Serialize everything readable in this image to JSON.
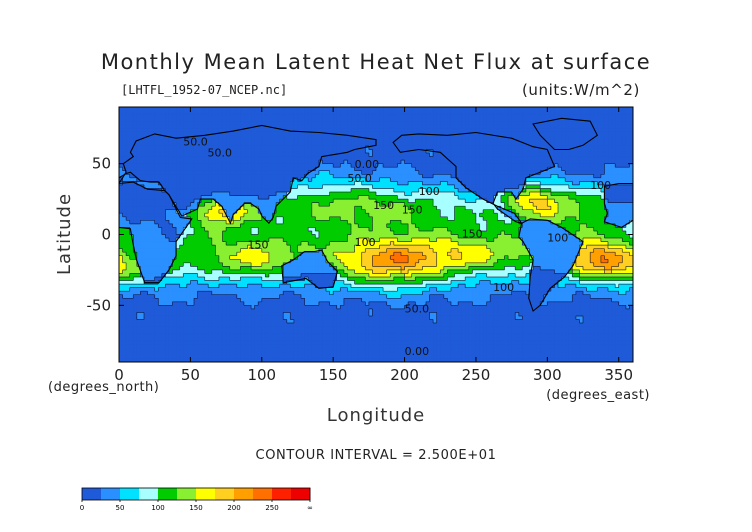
{
  "chart_data": {
    "type": "heatmap",
    "title": "Monthly Mean Latent Heat Net Flux at surface",
    "subtitle": "[LHTFL_1952-07_NCEP.nc]",
    "units_label": "(units:W/m^2)",
    "xlabel": "Longitude",
    "ylabel": "Latitude",
    "x_unit": "(degrees_east)",
    "y_unit": "(degrees_north)",
    "xlim": [
      0,
      360
    ],
    "ylim": [
      -90,
      90
    ],
    "x_ticks": [
      0,
      50,
      100,
      150,
      200,
      250,
      300,
      350
    ],
    "y_ticks": [
      50,
      0,
      -50
    ],
    "contour_interval_text": "CONTOUR INTERVAL = 2.500E+01",
    "colorbar": {
      "levels": [
        0,
        25,
        50,
        75,
        100,
        125,
        150,
        175,
        200,
        225,
        250,
        275
      ],
      "tick_labels": [
        "0",
        "50",
        "100",
        "150",
        "200",
        "250",
        "∞"
      ],
      "colors": [
        "#1f5bd8",
        "#2a8fff",
        "#00e0ff",
        "#a8ffff",
        "#00cc00",
        "#88f030",
        "#ffff00",
        "#ffd020",
        "#ffa000",
        "#ff7000",
        "#ff2000",
        "#ee0000"
      ]
    },
    "contour_labels": [
      "50.0",
      "50.0",
      "0.00",
      "50.0",
      "100",
      "150",
      "150",
      "150",
      "100",
      "150",
      "100",
      "100",
      "100",
      "50.0",
      "0.00"
    ]
  }
}
